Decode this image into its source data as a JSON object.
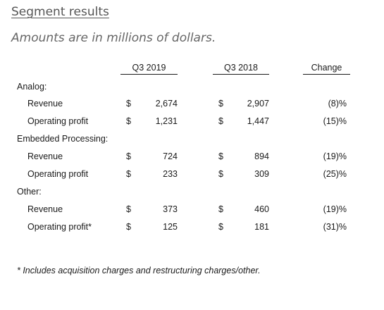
{
  "title": "Segment results",
  "subtitle": "Amounts are in millions of dollars.",
  "columns": {
    "q3_2019": "Q3 2019",
    "q3_2018": "Q3 2018",
    "change": "Change"
  },
  "currency": "$",
  "segments": [
    {
      "name": "Analog:",
      "rows": [
        {
          "label": "Revenue",
          "q3_2019": "2,674",
          "q3_2018": "2,907",
          "change": "(8)%"
        },
        {
          "label": "Operating profit",
          "q3_2019": "1,231",
          "q3_2018": "1,447",
          "change": "(15)%"
        }
      ]
    },
    {
      "name": "Embedded Processing:",
      "rows": [
        {
          "label": "Revenue",
          "q3_2019": "724",
          "q3_2018": "894",
          "change": "(19)%"
        },
        {
          "label": "Operating profit",
          "q3_2019": "233",
          "q3_2018": "309",
          "change": "(25)%"
        }
      ]
    },
    {
      "name": "Other:",
      "rows": [
        {
          "label": "Revenue",
          "q3_2019": "373",
          "q3_2018": "460",
          "change": "(19)%"
        },
        {
          "label": "Operating profit*",
          "q3_2019": "125",
          "q3_2018": "181",
          "change": "(31)%"
        }
      ]
    }
  ],
  "footnote": "* Includes acquisition charges and restructuring charges/other."
}
